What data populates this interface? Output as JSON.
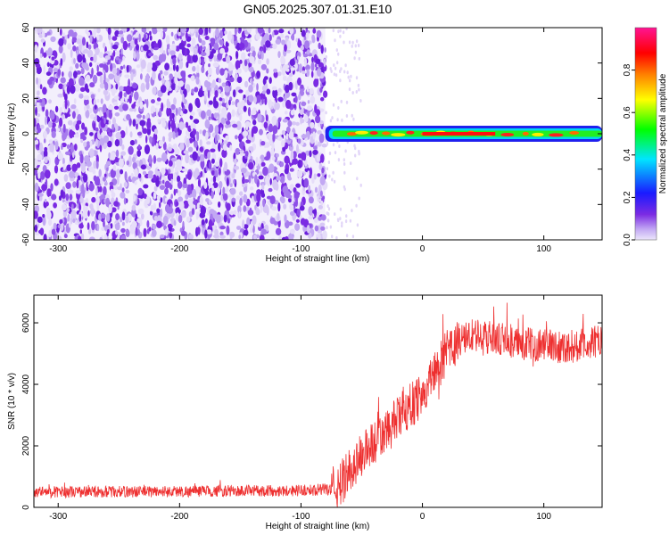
{
  "figure_title": "GN05.2025.307.01.31.E10",
  "chart_data": [
    {
      "type": "heatmap",
      "xlabel": "Height of straight line (km)",
      "ylabel": "Frequency (Hz)",
      "xlim": [
        -320,
        148
      ],
      "ylim": [
        -60,
        60
      ],
      "xticks": [
        -300,
        -200,
        -100,
        0,
        100
      ],
      "yticks": [
        -60,
        -40,
        -20,
        0,
        20,
        40,
        60
      ],
      "noise_region_x": [
        -320,
        -80
      ],
      "signal_region_x": [
        -80,
        148
      ],
      "signal_frequency_hz": 0,
      "grid": false,
      "colorbar": {
        "label": "Normalized spectral amplitude",
        "range": [
          0,
          1
        ],
        "ticks": [
          "0.0",
          "0.2",
          "0.4",
          "0.6",
          "0.8"
        ],
        "colors": [
          "#ece6fb",
          "#7b2be3",
          "#1a1aff",
          "#00e5ff",
          "#00ff00",
          "#ffff00",
          "#ff7f00",
          "#ff0000",
          "#ff1493"
        ]
      }
    },
    {
      "type": "line",
      "xlabel": "Height of straight line (km)",
      "ylabel": "SNR (10 * v/v)",
      "xlim": [
        -320,
        148
      ],
      "ylim": [
        0,
        6900
      ],
      "xticks": [
        -300,
        -200,
        -100,
        0,
        100
      ],
      "yticks": [
        0,
        2000,
        4000,
        6000
      ],
      "grid": false,
      "line_color": "#ee3030",
      "series": [
        {
          "x": [
            -320,
            -200,
            -100,
            -70,
            -60,
            -50,
            -40,
            -30,
            -20,
            -10,
            0,
            10,
            20,
            30,
            40,
            60,
            80,
            100,
            120,
            148
          ],
          "y": [
            500,
            520,
            550,
            600,
            1200,
            1700,
            2100,
            2400,
            2900,
            3300,
            3700,
            4400,
            5000,
            5400,
            5600,
            5500,
            5300,
            5300,
            5200,
            5400
          ]
        }
      ]
    }
  ]
}
